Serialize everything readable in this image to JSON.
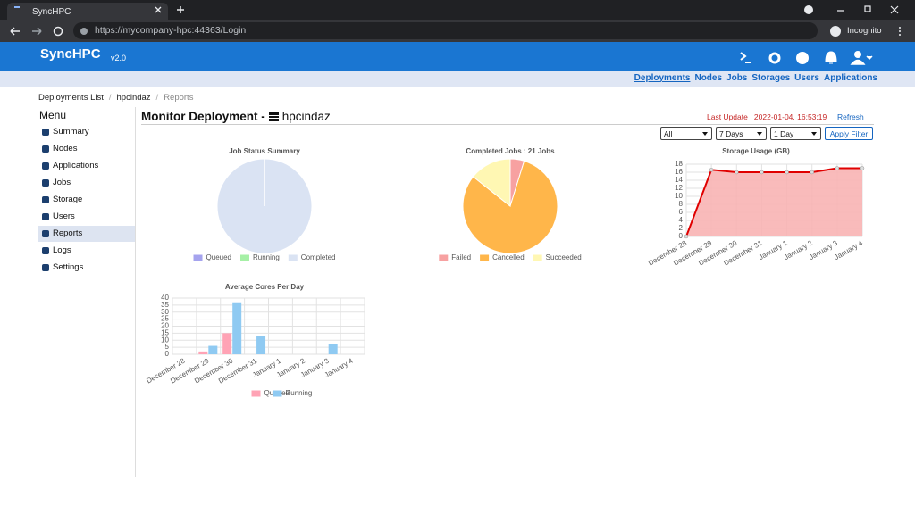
{
  "browser": {
    "tab_title": "SyncHPC",
    "url": "https://mycompany-hpc:44363/Login",
    "mode": "Incognito"
  },
  "app": {
    "name": "SyncHPC",
    "version": "v2.0"
  },
  "nav": [
    "Deployments",
    "Nodes",
    "Jobs",
    "Storages",
    "Users",
    "Applications"
  ],
  "breadcrumb": [
    "Deployments List",
    "hpcindaz",
    "Reports"
  ],
  "menu": {
    "title": "Menu",
    "items": [
      "Summary",
      "Nodes",
      "Applications",
      "Jobs",
      "Storage",
      "Users",
      "Reports",
      "Logs",
      "Settings"
    ]
  },
  "page": {
    "title": "Monitor Deployment -",
    "deployment": "hpcindaz",
    "last_update": "Last Update : 2022-01-04, 16:53:19",
    "refresh": "Refresh"
  },
  "filters": {
    "status": "All",
    "range": "7 Days",
    "interval": "1 Day",
    "apply": "Apply Filter"
  },
  "chart_data": [
    {
      "type": "pie",
      "title": "Job Status Summary",
      "categories": [
        "Queued",
        "Running",
        "Completed"
      ],
      "values": [
        0,
        0,
        21
      ],
      "colors": [
        "#a5a3ee",
        "#a6f0a6",
        "#dae3f3"
      ]
    },
    {
      "type": "pie",
      "title": "Completed Jobs : 21 Jobs",
      "categories": [
        "Failed",
        "Cancelled",
        "Succeeded"
      ],
      "values": [
        1,
        17,
        3
      ],
      "colors": [
        "#f7a1a1",
        "#ffb64a",
        "#fff7b3"
      ]
    },
    {
      "type": "line",
      "title": "Storage Usage (GB)",
      "categories": [
        "December 28",
        "December 29",
        "December 30",
        "December 31",
        "January 1",
        "January 2",
        "January 3",
        "January 4"
      ],
      "values": [
        0,
        16.6,
        16,
        16,
        16,
        16,
        17,
        17
      ],
      "color": "#e00000",
      "fill_color": "#f8b4b4",
      "ylim": [
        0,
        18
      ],
      "yticks": [
        0,
        2,
        4,
        6,
        8,
        10,
        12,
        14,
        16,
        18
      ],
      "grid": true
    },
    {
      "type": "bar",
      "title": "Average Cores Per Day",
      "categories": [
        "December 28",
        "December 29",
        "December 30",
        "December 31",
        "January 1",
        "January 2",
        "January 3",
        "January 4"
      ],
      "series": [
        {
          "name": "Queued",
          "color": "#ffa3b5",
          "values": [
            0,
            2,
            15,
            0,
            0,
            0,
            0,
            0
          ]
        },
        {
          "name": "Running",
          "color": "#8fcaf2",
          "values": [
            0,
            6,
            37,
            13,
            0,
            0,
            7,
            0
          ]
        }
      ],
      "ylim": [
        0,
        40
      ],
      "yticks": [
        0,
        5,
        10,
        15,
        20,
        25,
        30,
        35,
        40
      ],
      "grid": true
    }
  ]
}
